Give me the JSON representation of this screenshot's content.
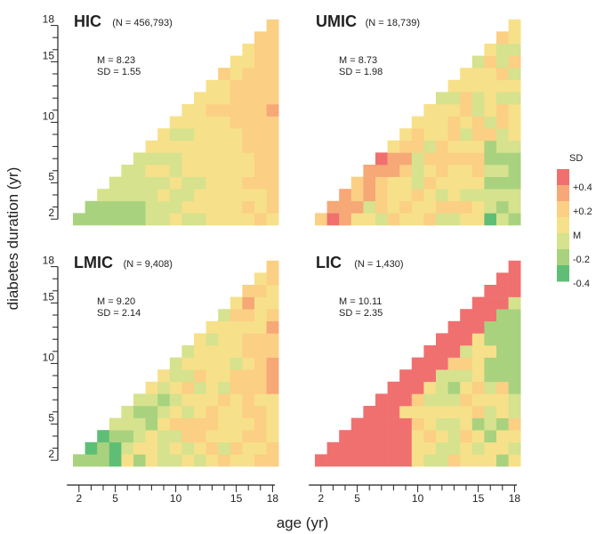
{
  "figure": {
    "ylabel": "diabetes duration (yr)",
    "xlabel": "age (yr)",
    "y_ticks": [
      2,
      5,
      10,
      15,
      18
    ],
    "x_ticks": [
      2,
      5,
      10,
      15,
      18
    ],
    "colors": {
      "neg04": "#5fbe76",
      "neg02": "#a9d27f",
      "mid_low": "#d6e28d",
      "mean": "#f7e08a",
      "mid_high": "#fbcf84",
      "pos02": "#f6a876",
      "pos04": "#f07070"
    }
  },
  "legend": {
    "title": "SD",
    "labels": [
      "+0.4",
      "+0.2",
      "M",
      "-0.2",
      "-0.4"
    ]
  },
  "chart_data": [
    {
      "type": "heatmap",
      "group": "HIC",
      "n_label": "(N = 456,793)",
      "mean_label": "M = 8.23",
      "sd_label": "SD = 1.55",
      "seed": 11,
      "profile": "hic"
    },
    {
      "type": "heatmap",
      "group": "UMIC",
      "n_label": "(N = 18,739)",
      "mean_label": "M = 8.73",
      "sd_label": "SD = 1.98",
      "seed": 23,
      "profile": "umic"
    },
    {
      "type": "heatmap",
      "group": "LMIC",
      "n_label": "(N = 9,408)",
      "mean_label": "M = 9.20",
      "sd_label": "SD = 2.14",
      "seed": 37,
      "profile": "lmic"
    },
    {
      "type": "heatmap",
      "group": "LIC",
      "n_label": "(N = 1,430)",
      "mean_label": "M = 10.11",
      "sd_label": "SD = 2.35",
      "seed": 51,
      "profile": "lic"
    }
  ]
}
